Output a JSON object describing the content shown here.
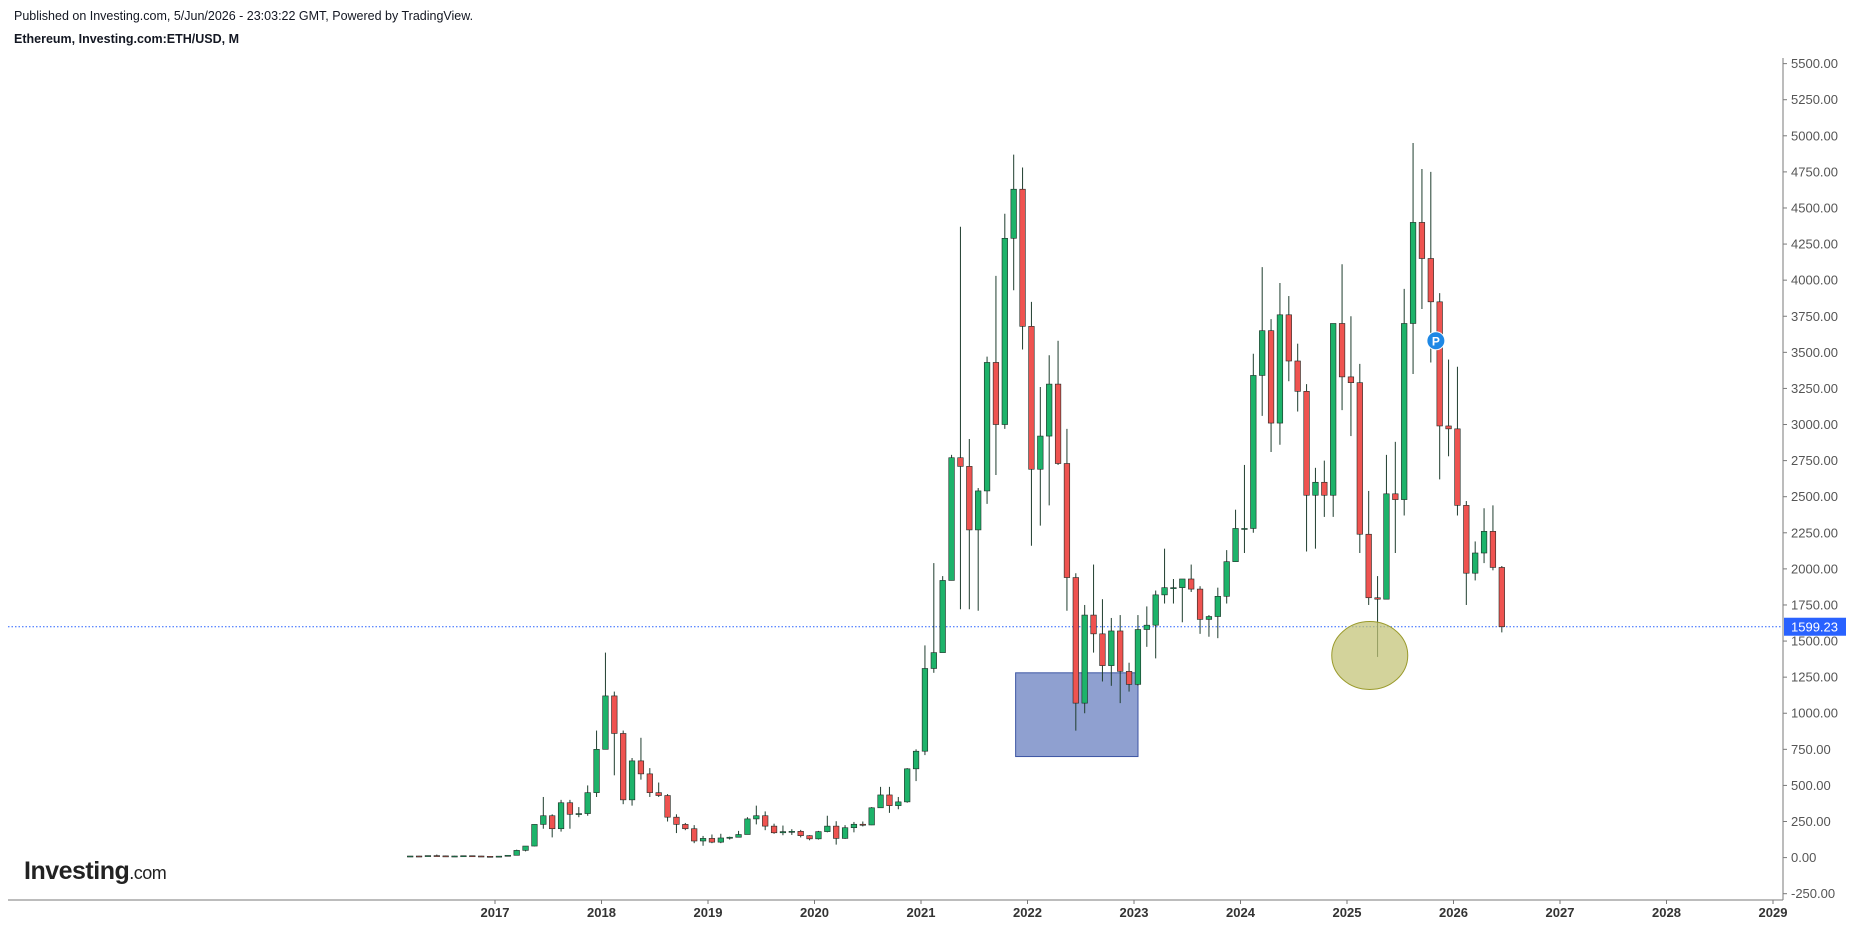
{
  "header": {
    "published": "Published on Investing.com, 5/Jun/2026 - 23:03:22 GMT, Powered by TradingView.",
    "symbol": "Ethereum, Investing.com:ETH/USD, M"
  },
  "logo": {
    "brand": "Investing",
    "suffix": ".com"
  },
  "colors": {
    "up": "#1db36a",
    "down": "#ef5350",
    "wick": "#1f3d2e",
    "price_line": "#2962ff",
    "box": "#7f93c9",
    "ellipse": "#c2c274"
  },
  "chart_data": {
    "type": "candlestick",
    "title": "Ethereum, Investing.com:ETH/USD, M",
    "interval": "M",
    "ylim": [
      -250,
      5500
    ],
    "xlim": [
      "2016-01",
      "2025-12"
    ],
    "y_ticks": [
      "5500.00",
      "5250.00",
      "5000.00",
      "4750.00",
      "4500.00",
      "4250.00",
      "4000.00",
      "3750.00",
      "3500.00",
      "3250.00",
      "3000.00",
      "2750.00",
      "2500.00",
      "2250.00",
      "2000.00",
      "1750.00",
      "1500.00",
      "1250.00",
      "1000.00",
      "750.00",
      "500.00",
      "250.00",
      "0.00",
      "-250.00"
    ],
    "x_ticks": [
      "2017",
      "2018",
      "2019",
      "2020",
      "2021",
      "2022",
      "2023",
      "2024",
      "2025",
      "2026",
      "2027",
      "2028",
      "2029"
    ],
    "last_price": "1599.23",
    "annotations": [
      {
        "type": "rectangle",
        "from": "2021-12",
        "to": "2023-01",
        "y_low": 700,
        "y_high": 1280
      },
      {
        "type": "ellipse",
        "center": "2025-03",
        "y_center": 1400
      },
      {
        "type": "marker",
        "label": "P",
        "at": "2025-10",
        "y": 3580
      }
    ],
    "candles": [
      [
        "2016-03",
        7,
        11,
        6,
        11
      ],
      [
        "2016-04",
        11,
        12,
        7,
        9
      ],
      [
        "2016-05",
        9,
        14,
        9,
        14
      ],
      [
        "2016-06",
        14,
        21,
        11,
        12
      ],
      [
        "2016-07",
        12,
        14,
        10,
        11
      ],
      [
        "2016-08",
        11,
        12,
        10,
        11
      ],
      [
        "2016-09",
        11,
        14,
        11,
        13
      ],
      [
        "2016-10",
        13,
        14,
        10,
        11
      ],
      [
        "2016-11",
        11,
        12,
        8,
        9
      ],
      [
        "2016-12",
        9,
        10,
        7,
        8
      ],
      [
        "2017-01",
        8,
        11,
        8,
        10
      ],
      [
        "2017-02",
        10,
        16,
        10,
        16
      ],
      [
        "2017-03",
        16,
        55,
        15,
        50
      ],
      [
        "2017-04",
        50,
        80,
        43,
        80
      ],
      [
        "2017-05",
        80,
        230,
        78,
        230
      ],
      [
        "2017-06",
        230,
        420,
        200,
        290
      ],
      [
        "2017-07",
        290,
        300,
        140,
        200
      ],
      [
        "2017-08",
        200,
        400,
        180,
        380
      ],
      [
        "2017-09",
        380,
        400,
        200,
        300
      ],
      [
        "2017-10",
        300,
        350,
        280,
        305
      ],
      [
        "2017-11",
        305,
        500,
        290,
        450
      ],
      [
        "2017-12",
        450,
        880,
        420,
        750
      ],
      [
        "2018-01",
        750,
        1420,
        750,
        1120
      ],
      [
        "2018-02",
        1120,
        1150,
        570,
        860
      ],
      [
        "2018-03",
        860,
        880,
        370,
        400
      ],
      [
        "2018-04",
        400,
        690,
        360,
        670
      ],
      [
        "2018-05",
        670,
        830,
        540,
        580
      ],
      [
        "2018-06",
        580,
        620,
        420,
        450
      ],
      [
        "2018-07",
        450,
        520,
        420,
        430
      ],
      [
        "2018-08",
        430,
        440,
        250,
        280
      ],
      [
        "2018-09",
        280,
        300,
        170,
        230
      ],
      [
        "2018-10",
        230,
        240,
        190,
        200
      ],
      [
        "2018-11",
        200,
        225,
        100,
        115
      ],
      [
        "2018-12",
        115,
        150,
        82,
        133
      ],
      [
        "2019-01",
        133,
        160,
        100,
        107
      ],
      [
        "2019-02",
        107,
        165,
        100,
        136
      ],
      [
        "2019-03",
        136,
        145,
        125,
        141
      ],
      [
        "2019-04",
        141,
        185,
        140,
        160
      ],
      [
        "2019-05",
        160,
        280,
        160,
        268
      ],
      [
        "2019-06",
        268,
        360,
        230,
        290
      ],
      [
        "2019-07",
        290,
        320,
        190,
        218
      ],
      [
        "2019-08",
        218,
        235,
        165,
        172
      ],
      [
        "2019-09",
        172,
        222,
        155,
        180
      ],
      [
        "2019-10",
        180,
        197,
        157,
        182
      ],
      [
        "2019-11",
        182,
        192,
        140,
        152
      ],
      [
        "2019-12",
        152,
        155,
        120,
        130
      ],
      [
        "2020-01",
        130,
        185,
        125,
        180
      ],
      [
        "2020-02",
        180,
        290,
        175,
        218
      ],
      [
        "2020-03",
        218,
        252,
        90,
        133
      ],
      [
        "2020-04",
        133,
        225,
        130,
        207
      ],
      [
        "2020-05",
        207,
        247,
        175,
        231
      ],
      [
        "2020-06",
        231,
        250,
        216,
        226
      ],
      [
        "2020-07",
        226,
        350,
        225,
        345
      ],
      [
        "2020-08",
        345,
        490,
        345,
        434
      ],
      [
        "2020-09",
        434,
        490,
        310,
        360
      ],
      [
        "2020-10",
        360,
        420,
        335,
        386
      ],
      [
        "2020-11",
        386,
        620,
        380,
        615
      ],
      [
        "2020-12",
        615,
        750,
        530,
        737
      ],
      [
        "2021-01",
        737,
        1470,
        710,
        1310
      ],
      [
        "2021-02",
        1310,
        2040,
        1280,
        1420
      ],
      [
        "2021-03",
        1420,
        1950,
        1440,
        1920
      ],
      [
        "2021-04",
        1920,
        2790,
        1920,
        2770
      ],
      [
        "2021-05",
        2770,
        4370,
        1720,
        2710
      ],
      [
        "2021-06",
        2710,
        2900,
        1720,
        2270
      ],
      [
        "2021-07",
        2270,
        2560,
        1710,
        2540
      ],
      [
        "2021-08",
        2540,
        3470,
        2450,
        3430
      ],
      [
        "2021-09",
        3430,
        4030,
        2650,
        3000
      ],
      [
        "2021-10",
        3000,
        4460,
        2970,
        4290
      ],
      [
        "2021-11",
        4290,
        4870,
        3930,
        4630
      ],
      [
        "2021-12",
        4630,
        4780,
        3520,
        3680
      ],
      [
        "2022-01",
        3680,
        3850,
        2160,
        2690
      ],
      [
        "2022-02",
        2690,
        3260,
        2300,
        2920
      ],
      [
        "2022-03",
        2920,
        3480,
        2440,
        3280
      ],
      [
        "2022-04",
        3280,
        3580,
        2720,
        2730
      ],
      [
        "2022-05",
        2730,
        2970,
        1710,
        1940
      ],
      [
        "2022-06",
        1940,
        1970,
        880,
        1070
      ],
      [
        "2022-07",
        1070,
        1750,
        1000,
        1680
      ],
      [
        "2022-08",
        1680,
        2030,
        1420,
        1550
      ],
      [
        "2022-09",
        1550,
        1790,
        1220,
        1330
      ],
      [
        "2022-10",
        1330,
        1660,
        1190,
        1570
      ],
      [
        "2022-11",
        1570,
        1680,
        1070,
        1290
      ],
      [
        "2022-12",
        1290,
        1350,
        1150,
        1200
      ],
      [
        "2023-01",
        1200,
        1680,
        1190,
        1580
      ],
      [
        "2023-02",
        1580,
        1740,
        1460,
        1610
      ],
      [
        "2023-03",
        1610,
        1850,
        1380,
        1820
      ],
      [
        "2023-04",
        1820,
        2140,
        1760,
        1870
      ],
      [
        "2023-05",
        1870,
        1930,
        1760,
        1870
      ],
      [
        "2023-06",
        1870,
        1930,
        1630,
        1930
      ],
      [
        "2023-07",
        1930,
        2030,
        1840,
        1860
      ],
      [
        "2023-08",
        1860,
        1880,
        1550,
        1650
      ],
      [
        "2023-09",
        1650,
        1680,
        1530,
        1670
      ],
      [
        "2023-10",
        1670,
        1870,
        1520,
        1810
      ],
      [
        "2023-11",
        1810,
        2130,
        1760,
        2050
      ],
      [
        "2023-12",
        2050,
        2410,
        2050,
        2280
      ],
      [
        "2024-01",
        2280,
        2720,
        2110,
        2280
      ],
      [
        "2024-02",
        2280,
        3490,
        2250,
        3340
      ],
      [
        "2024-03",
        3340,
        4090,
        3060,
        3650
      ],
      [
        "2024-04",
        3650,
        3730,
        2810,
        3010
      ],
      [
        "2024-05",
        3010,
        3980,
        2860,
        3760
      ],
      [
        "2024-06",
        3760,
        3890,
        3300,
        3440
      ],
      [
        "2024-07",
        3440,
        3560,
        3090,
        3230
      ],
      [
        "2024-08",
        3230,
        3280,
        2120,
        2510
      ],
      [
        "2024-09",
        2510,
        2700,
        2140,
        2600
      ],
      [
        "2024-10",
        2600,
        2750,
        2360,
        2510
      ],
      [
        "2024-11",
        2510,
        3700,
        2360,
        3700
      ],
      [
        "2024-12",
        3700,
        4110,
        3100,
        3330
      ],
      [
        "2025-01",
        3330,
        3750,
        2920,
        3290
      ],
      [
        "2025-02",
        3290,
        3420,
        2110,
        2240
      ],
      [
        "2025-03",
        2240,
        2540,
        1750,
        1800
      ],
      [
        "2025-04",
        1800,
        1950,
        1390,
        1790
      ],
      [
        "2025-05",
        1790,
        2790,
        1790,
        2520
      ],
      [
        "2025-06",
        2520,
        2880,
        2110,
        2480
      ],
      [
        "2025-07",
        2480,
        3940,
        2370,
        3700
      ],
      [
        "2025-08",
        3700,
        4950,
        3350,
        4400
      ],
      [
        "2025-09",
        4400,
        4770,
        3800,
        4150
      ],
      [
        "2025-10",
        4150,
        4750,
        3430,
        3850
      ],
      [
        "2025-11",
        3850,
        3910,
        2620,
        2990
      ],
      [
        "2025-12",
        2990,
        3450,
        2780,
        2970
      ],
      [
        "2026-01",
        2970,
        3400,
        2370,
        2440
      ],
      [
        "2026-02",
        2440,
        2470,
        1750,
        1970
      ],
      [
        "2026-03",
        1970,
        2190,
        1920,
        2110
      ],
      [
        "2026-04",
        2110,
        2420,
        2040,
        2260
      ],
      [
        "2026-05",
        2260,
        2440,
        1990,
        2010
      ],
      [
        "2026-06",
        2010,
        2020,
        1560,
        1599.23
      ]
    ]
  }
}
